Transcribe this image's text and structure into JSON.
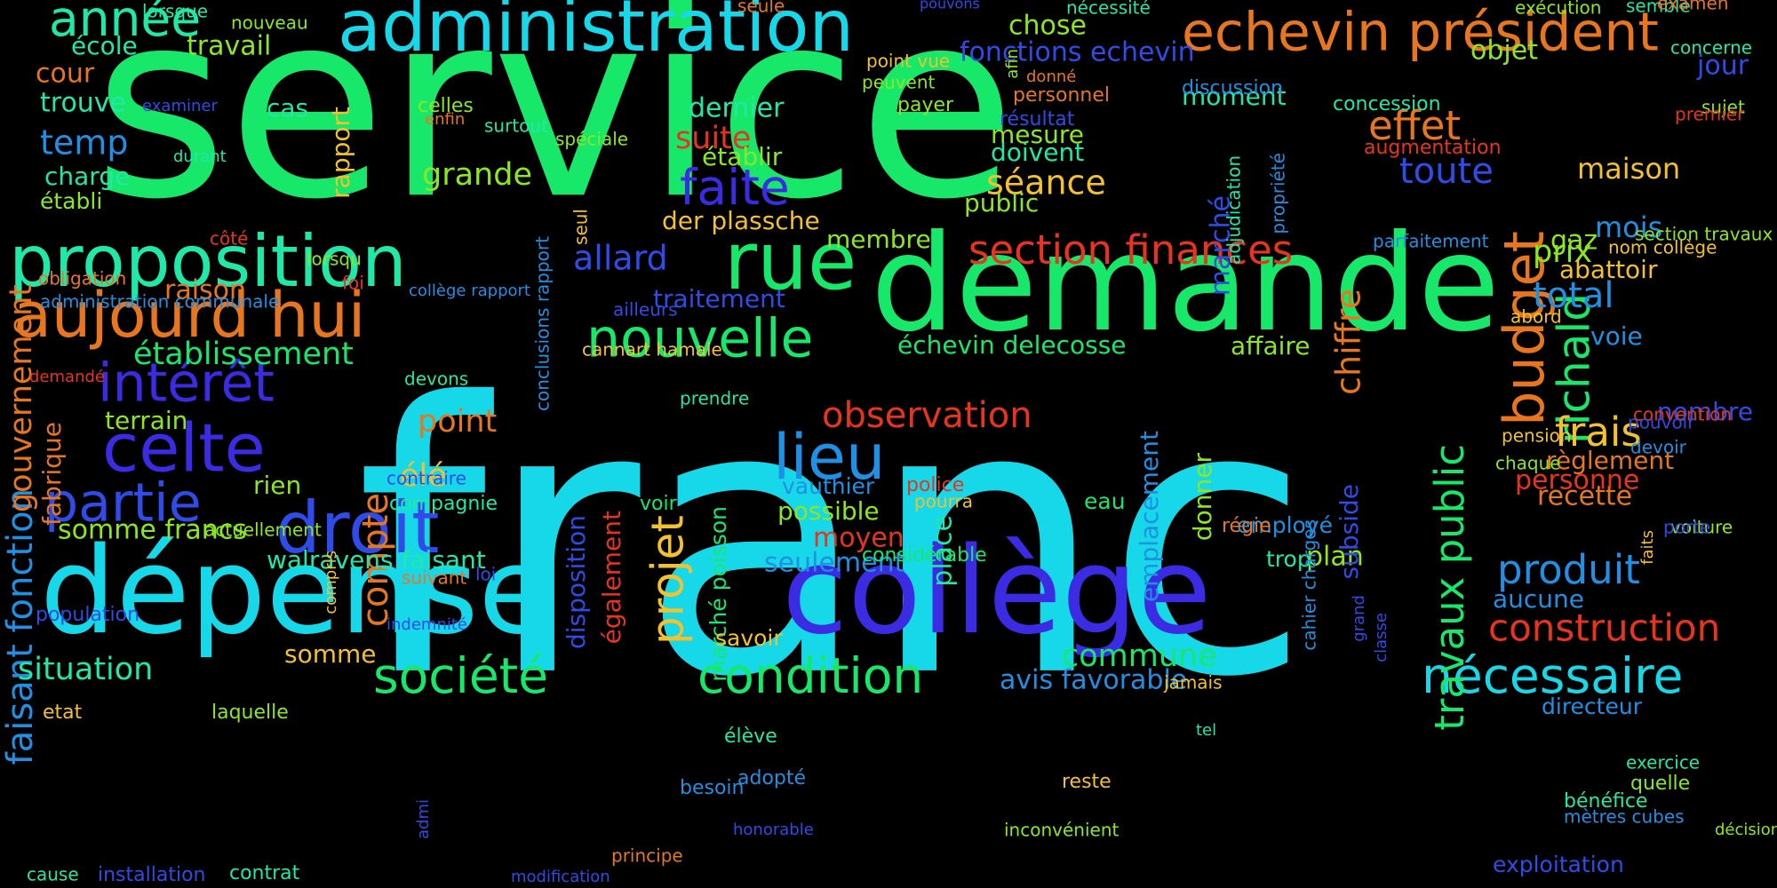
{
  "background": "#000000",
  "palette": {
    "green": "#17e86a",
    "cyan": "#17d8e8",
    "orange": "#e8761f",
    "blue": "#3b2be3",
    "mid_blue": "#1f90e3",
    "lime": "#8be81f",
    "yellow": "#f2c12b",
    "red": "#e8341f",
    "teal": "#1fe8a8",
    "royal": "#2f4be8"
  },
  "words": [
    "service",
    "franc",
    "demande",
    "dépense",
    "collège",
    "administration",
    "echevin président",
    "proposition",
    "aujourd hui",
    "rue",
    "droit",
    "celte",
    "lieu",
    "nouvelle",
    "budget",
    "richald",
    "société",
    "condition",
    "nécessaire",
    "section finances",
    "intérêt",
    "partie",
    "faite",
    "projet",
    "année",
    "travaux public",
    "construction",
    "produit",
    "observation",
    "établissement",
    "frais",
    "faisant fonction",
    "gouvernement",
    "effet",
    "chiffre",
    "toute",
    "séance",
    "compte",
    "situation",
    "allard",
    "total",
    "suite",
    "dernier",
    "temp",
    "trouve",
    "fonctions echevin",
    "marché",
    "échevin delecosse",
    "avis favorable",
    "commune",
    "somme francs",
    "walravens faisant",
    "der plassche",
    "prix",
    "maison",
    "mois",
    "jour",
    "objet",
    "chose",
    "point",
    "élé",
    "seulement",
    "traitement",
    "mesure",
    "doivent",
    "public",
    "affaire",
    "grande",
    "cas",
    "charge",
    "école",
    "travail",
    "moment",
    "discussion",
    "établir",
    "établi",
    "membre",
    "moyen",
    "possible",
    "vauthier",
    "place",
    "disposition",
    "marché poisson",
    "également",
    "rien",
    "terrain",
    "fabrique",
    "raison",
    "cour",
    "recette",
    "personne",
    "règlement",
    "nombre",
    "voie",
    "plan",
    "aucune",
    "emplacement",
    "donner",
    "subside",
    "concession",
    "augmentation",
    "gaz",
    "abattoir",
    "rapport",
    "celles",
    "enfin",
    "payer",
    "personnel",
    "donné",
    "point vue",
    "peuvent",
    "résultat",
    "somme",
    "savoir",
    "trop",
    "employé",
    "eau",
    "sujet",
    "premier",
    "concerne",
    "semble",
    "examen",
    "exécution",
    "nécessité",
    "pouvons",
    "seule",
    "nouveau",
    "lorsque",
    "examiner",
    "durant",
    "surtout",
    "spéciale",
    "seul",
    "conclusions rapport",
    "propriété",
    "adjudication",
    "parfaitement",
    "section travaux",
    "nom collège",
    "abord",
    "pension",
    "chaque",
    "devoir",
    "convention",
    "pouvoir",
    "voiture",
    "porte",
    "faits",
    "directeur",
    "exercice",
    "quelle",
    "bénéfice",
    "mètres cubes",
    "décision",
    "exploitation",
    "inconvénient",
    "reste",
    "jamais",
    "tel",
    "élève",
    "adopté",
    "besoin",
    "honorable",
    "principe",
    "modification",
    "installation",
    "cause",
    "contrat",
    "admi",
    "etat",
    "laquelle",
    "population",
    "indemnité",
    "loi",
    "compris",
    "suivant",
    "actuellement",
    "contraire",
    "compagnie",
    "voir",
    "considérable",
    "police",
    "pourra",
    "régie",
    "cahier charges",
    "classe",
    "grand",
    "ailleurs",
    "cannart hamale",
    "prendre",
    "devons",
    "demandé",
    "collège rapport",
    "administration communale",
    "obligation",
    "foi",
    "lorsqu",
    "côté",
    "afin"
  ]
}
